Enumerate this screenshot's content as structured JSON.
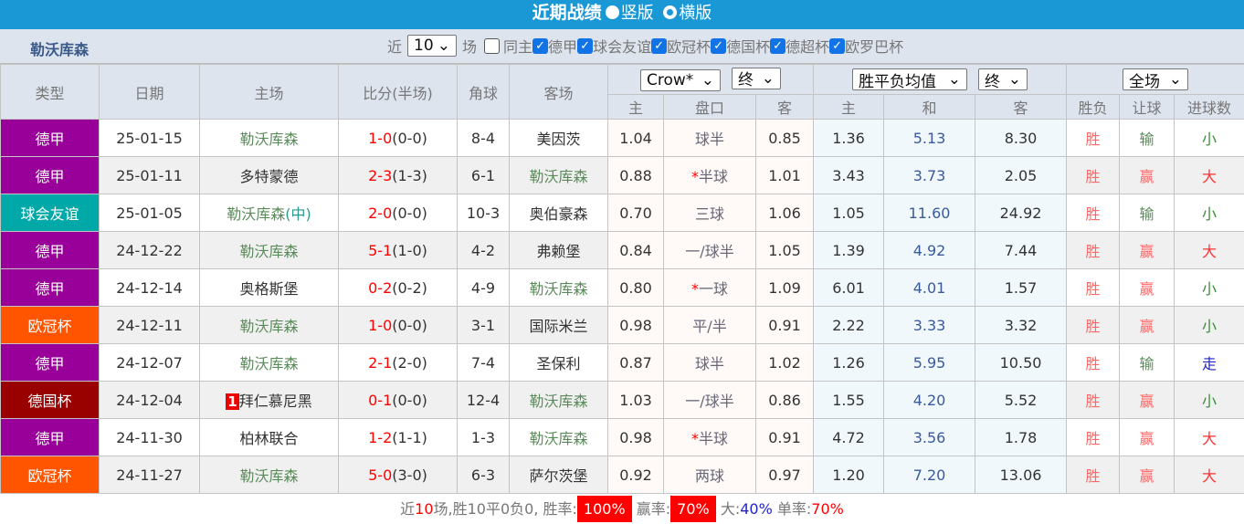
{
  "title": "近期战绩",
  "view_options": [
    {
      "label": "竖版",
      "selected": true
    },
    {
      "label": "横版",
      "selected": false
    }
  ],
  "team": "勒沃库森",
  "filters": {
    "prefix": "近",
    "count": "10",
    "suffix": "场",
    "same_home": "同主",
    "leagues": [
      "德甲",
      "球会友谊",
      "欧冠杯",
      "德国杯",
      "德超杯",
      "欧罗巴杯"
    ]
  },
  "colors": {
    "德甲": "#990099",
    "球会友谊": "#00a8a8",
    "欧冠杯": "#ff5500",
    "德国杯": "#990000",
    "header_bar": "#1a98d5"
  },
  "headers": {
    "type": "类型",
    "date": "日期",
    "home": "主场",
    "score": "比分(半场)",
    "corner": "角球",
    "away": "客场",
    "company": "Crow*",
    "company_stage": "终",
    "odds_type": "胜平负均值",
    "odds_stage": "终",
    "period": "全场",
    "ah": [
      "主",
      "盘口",
      "客"
    ],
    "eu": [
      "主",
      "和",
      "客"
    ],
    "res": [
      "胜负",
      "让球",
      "进球数"
    ]
  },
  "rows": [
    {
      "league": "德甲",
      "date": "25-01-15",
      "home": "勒沃库森",
      "score": "1-0",
      "half": "(0-0)",
      "corner": "8-4",
      "away": "美因茨",
      "ah_h": "1.04",
      "line": "球半",
      "ah_a": "0.85",
      "eu_h": "1.36",
      "eu_d": "5.13",
      "eu_a": "8.30",
      "wl": "胜",
      "hc": "输",
      "ou": "小"
    },
    {
      "league": "德甲",
      "date": "25-01-11",
      "home": "多特蒙德",
      "score": "2-3",
      "half": "(1-3)",
      "corner": "6-1",
      "away": "勒沃库森",
      "ah_h": "0.88",
      "line": "半球",
      "star": true,
      "ah_a": "1.01",
      "eu_h": "3.43",
      "eu_d": "3.73",
      "eu_a": "2.05",
      "wl": "胜",
      "hc": "赢",
      "ou": "大"
    },
    {
      "league": "球会友谊",
      "date": "25-01-05",
      "home": "勒沃库森",
      "neutral": "(中)",
      "score": "2-0",
      "half": "(0-0)",
      "corner": "10-3",
      "away": "奥伯豪森",
      "ah_h": "0.70",
      "line": "三球",
      "ah_a": "1.06",
      "eu_h": "1.05",
      "eu_d": "11.60",
      "eu_a": "24.92",
      "wl": "胜",
      "hc": "输",
      "ou": "小"
    },
    {
      "league": "德甲",
      "date": "24-12-22",
      "home": "勒沃库森",
      "score": "5-1",
      "half": "(1-0)",
      "corner": "4-2",
      "away": "弗赖堡",
      "ah_h": "0.84",
      "line": "一/球半",
      "ah_a": "1.05",
      "eu_h": "1.39",
      "eu_d": "4.92",
      "eu_a": "7.44",
      "wl": "胜",
      "hc": "赢",
      "ou": "大"
    },
    {
      "league": "德甲",
      "date": "24-12-14",
      "home": "奥格斯堡",
      "score": "0-2",
      "half": "(0-2)",
      "corner": "4-9",
      "away": "勒沃库森",
      "ah_h": "0.80",
      "line": "一球",
      "star": true,
      "ah_a": "1.09",
      "eu_h": "6.01",
      "eu_d": "4.01",
      "eu_a": "1.57",
      "wl": "胜",
      "hc": "赢",
      "ou": "小"
    },
    {
      "league": "欧冠杯",
      "date": "24-12-11",
      "home": "勒沃库森",
      "score": "1-0",
      "half": "(0-0)",
      "corner": "3-1",
      "away": "国际米兰",
      "ah_h": "0.98",
      "line": "平/半",
      "ah_a": "0.91",
      "eu_h": "2.22",
      "eu_d": "3.33",
      "eu_a": "3.32",
      "wl": "胜",
      "hc": "赢",
      "ou": "小"
    },
    {
      "league": "德甲",
      "date": "24-12-07",
      "home": "勒沃库森",
      "score": "2-1",
      "half": "(2-0)",
      "corner": "7-4",
      "away": "圣保利",
      "ah_h": "0.87",
      "line": "球半",
      "ah_a": "1.02",
      "eu_h": "1.26",
      "eu_d": "5.95",
      "eu_a": "10.50",
      "wl": "胜",
      "hc": "输",
      "ou": "走"
    },
    {
      "league": "德国杯",
      "date": "24-12-04",
      "home": "拜仁慕尼黑",
      "badge": "1",
      "score": "0-1",
      "half": "(0-0)",
      "corner": "12-4",
      "away": "勒沃库森",
      "ah_h": "1.03",
      "line": "一/球半",
      "ah_a": "0.86",
      "eu_h": "1.55",
      "eu_d": "4.20",
      "eu_a": "5.52",
      "wl": "胜",
      "hc": "赢",
      "ou": "小"
    },
    {
      "league": "德甲",
      "date": "24-11-30",
      "home": "柏林联合",
      "score": "1-2",
      "half": "(1-1)",
      "corner": "1-3",
      "away": "勒沃库森",
      "ah_h": "0.98",
      "line": "半球",
      "star": true,
      "ah_a": "0.91",
      "eu_h": "4.72",
      "eu_d": "3.56",
      "eu_a": "1.78",
      "wl": "胜",
      "hc": "赢",
      "ou": "大"
    },
    {
      "league": "欧冠杯",
      "date": "24-11-27",
      "home": "勒沃库森",
      "score": "5-0",
      "half": "(3-0)",
      "corner": "6-3",
      "away": "萨尔茨堡",
      "ah_h": "0.92",
      "line": "两球",
      "ah_a": "0.97",
      "eu_h": "1.20",
      "eu_d": "7.20",
      "eu_a": "13.06",
      "wl": "胜",
      "hc": "赢",
      "ou": "大"
    }
  ],
  "summary": {
    "p1": "近",
    "n": "10",
    "p2": "场,胜10平0负0, 胜率:",
    "win_rate": "100%",
    "p3": "赢率:",
    "cover_rate": "70%",
    "p4": "大:",
    "over_rate": "40%",
    "p5": "单率:",
    "odd_rate": "70%"
  }
}
